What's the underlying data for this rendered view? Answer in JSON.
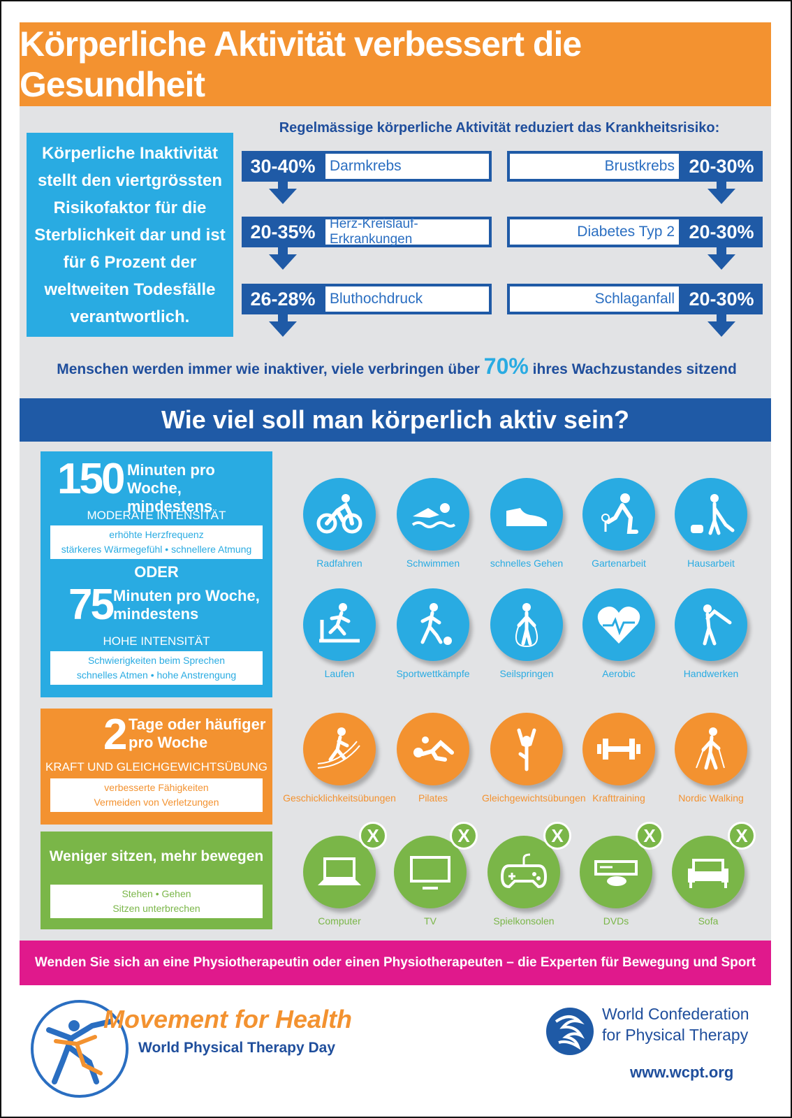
{
  "title": "Körperliche Aktivität verbessert die Gesundheit",
  "inactivity_text": "Körperliche Inaktivität stellt den viertgrössten Risikofaktor  für die Sterblichkeit dar und ist für 6 Prozent der weltweiten Todesfälle verantwortlich.",
  "risk": {
    "heading": "Regelmässige körperliche Aktivität reduziert das Krankheitsrisiko:",
    "left": [
      {
        "pct": "30-40%",
        "label": "Darmkrebs"
      },
      {
        "pct": "20-35%",
        "label": "Herz-Kreislauf-Erkrankungen"
      },
      {
        "pct": "26-28%",
        "label": "Bluthochdruck"
      }
    ],
    "right": [
      {
        "pct": "20-30%",
        "label": "Brustkrebs"
      },
      {
        "pct": "20-30%",
        "label": "Diabetes Typ 2"
      },
      {
        "pct": "20-30%",
        "label": "Schlaganfall"
      }
    ]
  },
  "sitting": {
    "before": "Menschen werden immer wie inaktiver, viele verbringen über",
    "value": "70%",
    "after": "ihres Wachzustandes sitzend"
  },
  "section_title": "Wie viel soll man körperlich aktiv sein?",
  "moderate": {
    "number": "150",
    "unit_line1": "Minuten pro Woche,",
    "unit_line2": "mindestens",
    "intensity": "MODERATE INTENSITÄT",
    "note_line1": "erhöhte Herzfrequenz",
    "note_line2": "stärkeres Wärmegefühl  •  schnellere Atmung"
  },
  "or_text": "ODER",
  "high": {
    "number": "75",
    "unit_line1": "Minuten pro Woche,",
    "unit_line2": "mindestens",
    "intensity": "HOHE INTENSITÄT",
    "note_line1": "Schwierigkeiten beim Sprechen",
    "note_line2": "schnelles Atmen  •  hohe Anstrengung"
  },
  "strength": {
    "number": "2",
    "unit_line1": "Tage oder häufiger",
    "unit_line2": "pro Woche",
    "type": "KRAFT UND GLEICHGEWICHTSÜBUNG",
    "note_line1": "verbesserte Fähigkeiten",
    "note_line2": "Vermeiden von Verletzungen"
  },
  "sit_less": {
    "title": "Weniger sitzen, mehr bewegen",
    "note_line1": "Stehen  •  Gehen",
    "note_line2": "Sitzen unterbrechen"
  },
  "icons_row1": [
    "Radfahren",
    "Schwimmen",
    "schnelles Gehen",
    "Gartenarbeit",
    "Hausarbeit"
  ],
  "icons_row2": [
    "Laufen",
    "Sportwettkämpfe",
    "Seilspringen",
    "Aerobic",
    "Handwerken"
  ],
  "icons_row3": [
    "Geschicklichkeitsübungen",
    "Pilates",
    "Gleichgewichtsübungen",
    "Krafttraining",
    "Nordic Walking"
  ],
  "icons_row4": [
    "Computer",
    "TV",
    "Spielkonsolen",
    "DVDs",
    "Sofa"
  ],
  "x_mark": "X",
  "contact": "Wenden Sie sich an eine Physiotherapeutin oder einen Physiotherapeuten – die Experten für Bewegung und Sport",
  "footer": {
    "campaign": "Movement for Health",
    "day": "World Physical Therapy Day",
    "org_line1": "World Confederation",
    "org_line2": "for Physical Therapy",
    "url": "www.wcpt.org"
  },
  "colors": {
    "orange": "#F39230",
    "light_blue": "#29ABE2",
    "dark_blue": "#1F5AA6",
    "green": "#7AB648",
    "magenta": "#E0198C",
    "grey": "#E2E3E5"
  }
}
